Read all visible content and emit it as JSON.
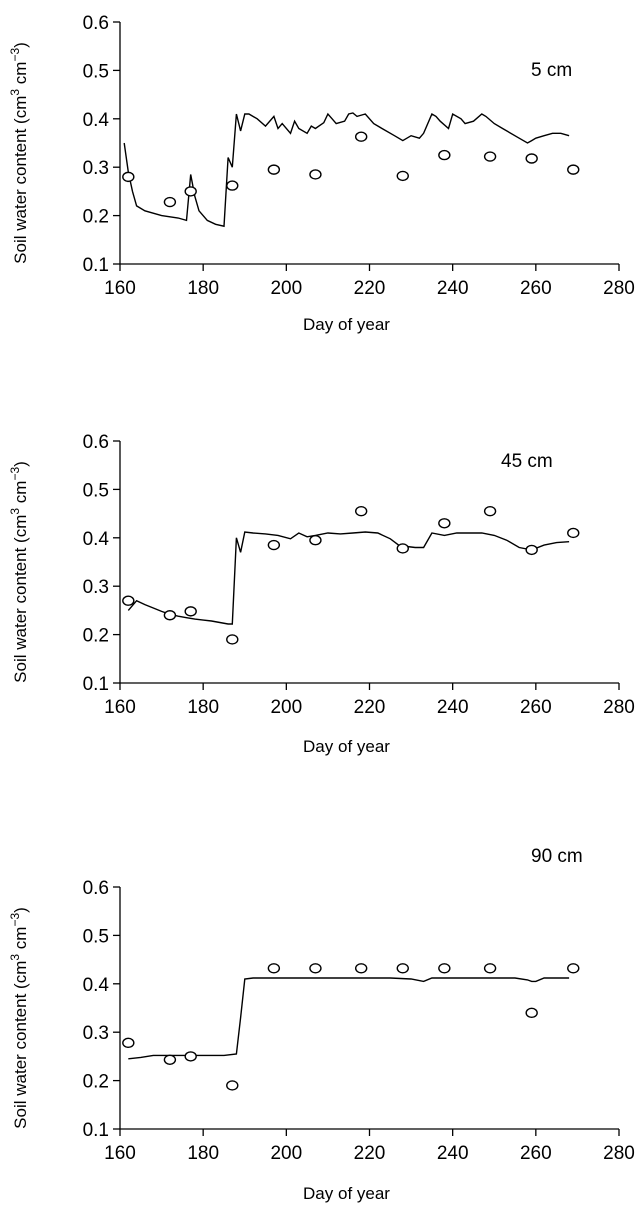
{
  "chart_data": [
    {
      "type": "line",
      "panel_label": "5 cm",
      "xlabel": "Day of year",
      "ylabel_main": "Soil water content (cm",
      "ylabel_sup1": "3",
      "ylabel_mid": " cm",
      "ylabel_sup2": "−3",
      "ylabel_end": ")",
      "xlim": [
        160,
        280
      ],
      "ylim": [
        0.1,
        0.6
      ],
      "x_ticks": [
        "160",
        "180",
        "200",
        "220",
        "240",
        "260",
        "280"
      ],
      "y_ticks": [
        "0.1",
        "0.2",
        "0.3",
        "0.4",
        "0.5",
        "0.6"
      ],
      "grid": false,
      "series": [
        {
          "kind": "line",
          "x": [
            161,
            162,
            163,
            164,
            166,
            170,
            174,
            176,
            177,
            178,
            179,
            181,
            183,
            185,
            186,
            187,
            188,
            189,
            190,
            191,
            193,
            195,
            197,
            198,
            199,
            201,
            202,
            203,
            205,
            206,
            207,
            209,
            210,
            211,
            212,
            214,
            215,
            216,
            217,
            219,
            221,
            223,
            226,
            228,
            229,
            230,
            232,
            233,
            235,
            236,
            237,
            239,
            240,
            242,
            243,
            245,
            247,
            248,
            250,
            252,
            256,
            258,
            259,
            260,
            262,
            264,
            266,
            268
          ],
          "y": [
            0.35,
            0.29,
            0.25,
            0.22,
            0.21,
            0.2,
            0.195,
            0.19,
            0.285,
            0.24,
            0.21,
            0.19,
            0.182,
            0.178,
            0.32,
            0.3,
            0.41,
            0.375,
            0.41,
            0.41,
            0.4,
            0.385,
            0.405,
            0.38,
            0.39,
            0.37,
            0.395,
            0.38,
            0.37,
            0.385,
            0.38,
            0.392,
            0.41,
            0.4,
            0.39,
            0.395,
            0.41,
            0.412,
            0.405,
            0.41,
            0.39,
            0.38,
            0.365,
            0.355,
            0.36,
            0.365,
            0.36,
            0.37,
            0.41,
            0.405,
            0.395,
            0.38,
            0.41,
            0.4,
            0.39,
            0.395,
            0.41,
            0.405,
            0.39,
            0.38,
            0.36,
            0.35,
            0.355,
            0.36,
            0.365,
            0.37,
            0.37,
            0.365
          ]
        },
        {
          "kind": "observed",
          "x": [
            162,
            172,
            177,
            187,
            197,
            207,
            218,
            228,
            238,
            249,
            259,
            269
          ],
          "y": [
            0.28,
            0.228,
            0.25,
            0.262,
            0.295,
            0.285,
            0.363,
            0.282,
            0.325,
            0.322,
            0.318,
            0.295
          ]
        }
      ]
    },
    {
      "type": "line",
      "panel_label": "45 cm",
      "xlabel": "Day of year",
      "ylabel_main": "Soil water content (cm",
      "ylabel_sup1": "3",
      "ylabel_mid": " cm",
      "ylabel_sup2": "−3",
      "ylabel_end": ")",
      "xlim": [
        160,
        280
      ],
      "ylim": [
        0.1,
        0.6
      ],
      "x_ticks": [
        "160",
        "180",
        "200",
        "220",
        "240",
        "260",
        "280"
      ],
      "y_ticks": [
        "0.1",
        "0.2",
        "0.3",
        "0.4",
        "0.5",
        "0.6"
      ],
      "grid": false,
      "series": [
        {
          "kind": "line",
          "x": [
            162,
            164,
            166,
            168,
            170,
            172,
            174,
            176,
            178,
            180,
            182,
            184,
            186,
            187,
            188,
            189,
            190,
            192,
            195,
            198,
            201,
            203,
            205,
            207,
            210,
            213,
            216,
            219,
            222,
            225,
            227,
            229,
            231,
            233,
            235,
            238,
            241,
            244,
            247,
            250,
            253,
            256,
            259,
            262,
            265,
            268
          ],
          "y": [
            0.25,
            0.27,
            0.262,
            0.255,
            0.248,
            0.242,
            0.238,
            0.235,
            0.232,
            0.23,
            0.228,
            0.225,
            0.222,
            0.222,
            0.4,
            0.37,
            0.412,
            0.41,
            0.408,
            0.405,
            0.398,
            0.41,
            0.402,
            0.405,
            0.41,
            0.408,
            0.41,
            0.412,
            0.41,
            0.398,
            0.385,
            0.382,
            0.38,
            0.38,
            0.41,
            0.405,
            0.41,
            0.41,
            0.41,
            0.405,
            0.395,
            0.38,
            0.375,
            0.385,
            0.39,
            0.392
          ]
        },
        {
          "kind": "observed",
          "x": [
            162,
            172,
            177,
            187,
            197,
            207,
            218,
            228,
            238,
            249,
            259,
            269
          ],
          "y": [
            0.27,
            0.24,
            0.248,
            0.19,
            0.385,
            0.395,
            0.455,
            0.378,
            0.43,
            0.455,
            0.375,
            0.41
          ]
        }
      ]
    },
    {
      "type": "line",
      "panel_label": "90 cm",
      "xlabel": "Day of year",
      "ylabel_main": "Soil water content (cm",
      "ylabel_sup1": "3",
      "ylabel_mid": " cm",
      "ylabel_sup2": "−3",
      "ylabel_end": ")",
      "xlim": [
        160,
        280
      ],
      "ylim": [
        0.1,
        0.6
      ],
      "x_ticks": [
        "160",
        "180",
        "200",
        "220",
        "240",
        "260",
        "280"
      ],
      "y_ticks": [
        "0.1",
        "0.2",
        "0.3",
        "0.4",
        "0.5",
        "0.6"
      ],
      "grid": false,
      "series": [
        {
          "kind": "line",
          "x": [
            162,
            165,
            168,
            172,
            176,
            180,
            185,
            188,
            189,
            190,
            192,
            200,
            210,
            220,
            225,
            230,
            233,
            235,
            240,
            250,
            255,
            258,
            259,
            260,
            262,
            265,
            268
          ],
          "y": [
            0.245,
            0.248,
            0.252,
            0.252,
            0.252,
            0.252,
            0.252,
            0.255,
            0.33,
            0.41,
            0.412,
            0.412,
            0.412,
            0.412,
            0.412,
            0.41,
            0.405,
            0.412,
            0.412,
            0.412,
            0.412,
            0.408,
            0.405,
            0.405,
            0.412,
            0.412,
            0.412
          ]
        },
        {
          "kind": "observed",
          "x": [
            162,
            172,
            177,
            187,
            197,
            207,
            218,
            228,
            238,
            249,
            259,
            269
          ],
          "y": [
            0.278,
            0.243,
            0.25,
            0.19,
            0.432,
            0.432,
            0.432,
            0.432,
            0.432,
            0.432,
            0.34,
            0.432
          ]
        }
      ]
    }
  ]
}
